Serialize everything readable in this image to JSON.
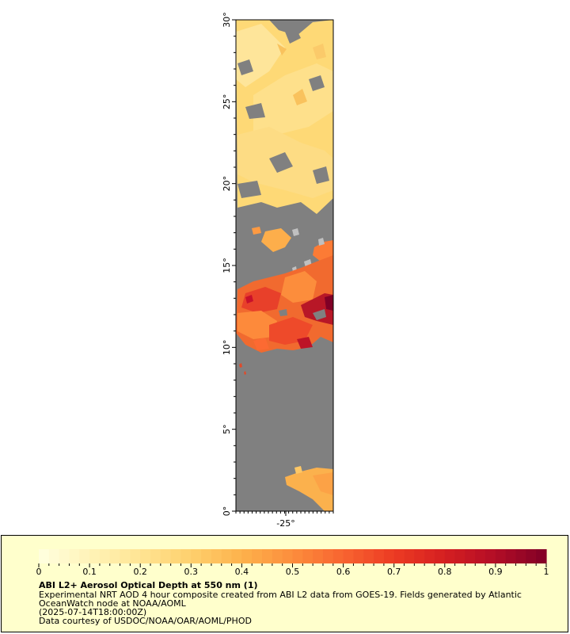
{
  "map": {
    "lat_ticks": [
      {
        "value": 30,
        "label": "30°"
      },
      {
        "value": 25,
        "label": "25°"
      },
      {
        "value": 20,
        "label": "20°"
      },
      {
        "value": 15,
        "label": "15°"
      },
      {
        "value": 10,
        "label": "10°"
      },
      {
        "value": 5,
        "label": "5°"
      },
      {
        "value": 0,
        "label": "0°"
      }
    ],
    "lon_ticks": [
      {
        "value": -25,
        "label": "-25°"
      }
    ],
    "lat_range": [
      0,
      30
    ],
    "colors": {
      "no_data": "#808080",
      "land_or_missing": "#c0c0c0",
      "frame": "#000000"
    }
  },
  "legend": {
    "colorbar_ticks": [
      "0",
      "0.1",
      "0.2",
      "0.3",
      "0.4",
      "0.5",
      "0.6",
      "0.7",
      "0.8",
      "0.9",
      "1"
    ],
    "colormap": [
      "#ffffe0",
      "#fff3b8",
      "#ffe493",
      "#fed06d",
      "#fdb24c",
      "#fc8d3c",
      "#f86430",
      "#ec3b23",
      "#d51f21",
      "#b20d26",
      "#800026"
    ],
    "title": "ABI L2+ Aerosol Optical Depth at 550 nm (1)",
    "line1": "Experimental NRT AOD 4 hour composite created from ABI L2 data from GOES-19. Fields generated by Atlantic",
    "line2": "OceanWatch node at NOAA/AOML",
    "line3": "(2025-07-14T18:00:00Z)",
    "line4": "Data courtesy of USDOC/NOAA/OAR/AOML/PHOD"
  }
}
